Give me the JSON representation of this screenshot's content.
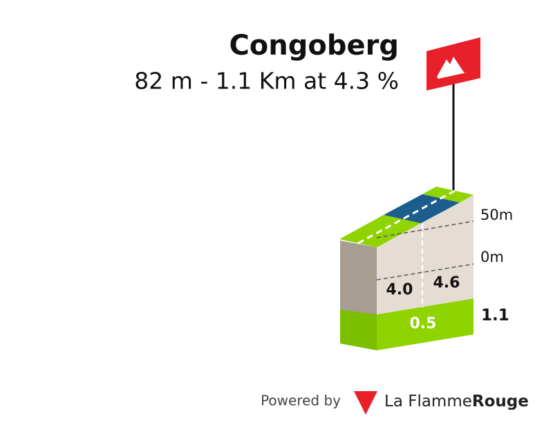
{
  "header": {
    "title": "Congoberg",
    "subtitle": "82 m - 1.1 Km at 4.3 %"
  },
  "profile": {
    "altitude_labels": [
      "50m",
      "0m"
    ],
    "segments": [
      {
        "gradient": "4.0"
      },
      {
        "gradient": "4.6"
      }
    ],
    "distance_labels": [
      "0.5",
      "1.1"
    ]
  },
  "footer": {
    "powered": "Powered by",
    "brand_light": "La Flamme",
    "brand_bold": "Rouge"
  }
}
